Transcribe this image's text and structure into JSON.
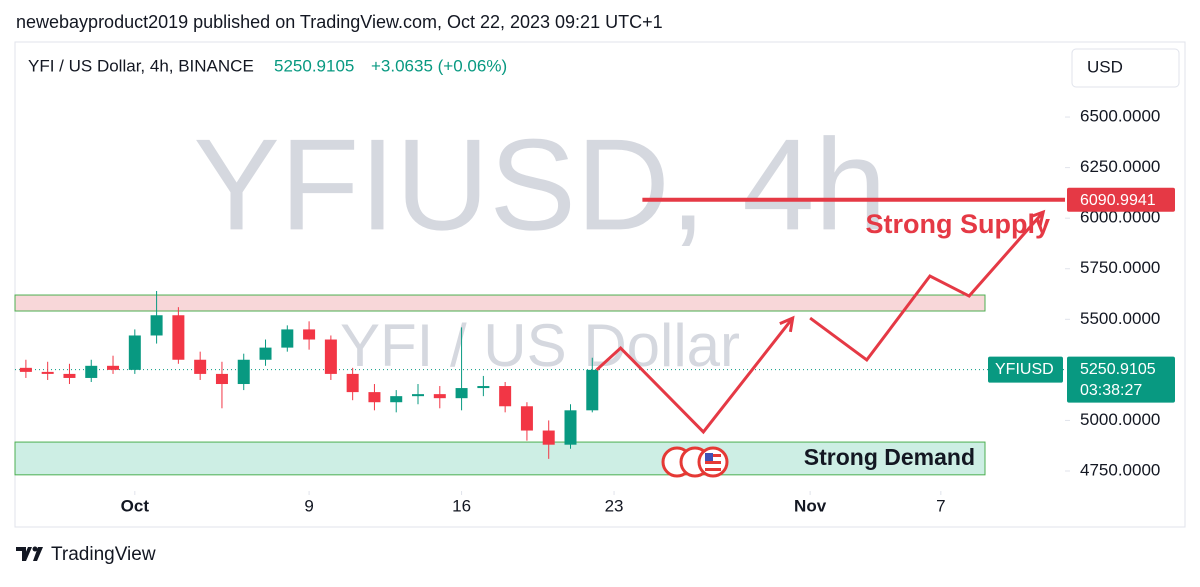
{
  "header": {
    "publisher": "newebayproduct2019 published on TradingView.com, Oct 22, 2023 09:21 UTC+1",
    "brand": "TradingView"
  },
  "chart_data": {
    "type": "candlestick",
    "title": "YFI / US Dollar, 4h, BINANCE",
    "change": "+3.0635 (+0.06%)",
    "currency": "USD",
    "watermark": "YFIUSD, 4h",
    "watermark_sub": "YFI / US Dollar",
    "symbol": "YFIUSD",
    "countdown": "03:38:27",
    "last_price": 5250.9105,
    "up_color": "#089981",
    "down_color": "#f23645",
    "x": [
      -5,
      -4,
      -3,
      -2,
      -1,
      0,
      1,
      2,
      3,
      4,
      5,
      6,
      7,
      8,
      9,
      10,
      11,
      12,
      13,
      14,
      15,
      16,
      17,
      18,
      19,
      20,
      21
    ],
    "open": [
      5260,
      5240,
      5230,
      5210,
      5270,
      5250,
      5420,
      5520,
      5300,
      5230,
      5180,
      5300,
      5360,
      5450,
      5400,
      5230,
      5140,
      5090,
      5120,
      5130,
      5110,
      5160,
      5170,
      5070,
      4950,
      4880,
      5050
    ],
    "high": [
      5300,
      5290,
      5280,
      5300,
      5320,
      5450,
      5640,
      5560,
      5340,
      5290,
      5330,
      5400,
      5470,
      5490,
      5420,
      5260,
      5180,
      5150,
      5180,
      5170,
      5460,
      5220,
      5190,
      5090,
      5000,
      5080,
      5310
    ],
    "low": [
      5210,
      5200,
      5180,
      5190,
      5230,
      5230,
      5380,
      5280,
      5200,
      5060,
      5150,
      5270,
      5340,
      5350,
      5200,
      5100,
      5050,
      5040,
      5080,
      5060,
      5050,
      5120,
      5040,
      4900,
      4810,
      4860,
      5040
    ],
    "close": [
      5240,
      5230,
      5210,
      5270,
      5250,
      5420,
      5520,
      5300,
      5230,
      5180,
      5300,
      5360,
      5450,
      5400,
      5230,
      5140,
      5090,
      5120,
      5130,
      5110,
      5160,
      5170,
      5070,
      4950,
      4880,
      5050,
      5250
    ],
    "xlim": [
      -5.5,
      42.7
    ],
    "ylim": [
      4656,
      6609
    ],
    "xticks": [
      {
        "value": 0,
        "label": "Oct"
      },
      {
        "value": 8,
        "label": "9"
      },
      {
        "value": 15,
        "label": "16"
      },
      {
        "value": 22,
        "label": "23"
      },
      {
        "value": 31,
        "label": "Nov"
      },
      {
        "value": 37,
        "label": "7"
      }
    ],
    "yticks": [
      {
        "value": 4750,
        "label": "4750.0000"
      },
      {
        "value": 5000,
        "label": "5000.0000"
      },
      {
        "value": 5500,
        "label": "5500.0000"
      },
      {
        "value": 5750,
        "label": "5750.0000"
      },
      {
        "value": 6000,
        "label": "6000.0000"
      },
      {
        "value": 6250,
        "label": "6250.0000"
      },
      {
        "value": 6500,
        "label": "6500.0000"
      }
    ],
    "supply": {
      "label": "Strong Supply",
      "range": [
        5541,
        5620
      ]
    },
    "demand": {
      "label": "Strong Demand",
      "range": [
        4731,
        4893
      ]
    },
    "level": {
      "value": 6090.9941,
      "start": 23.3
    },
    "projection": [
      {
        "x": [
          21.2,
          22.3,
          26.1,
          30.2
        ],
        "y": [
          5250,
          5358,
          4943,
          5506
        ]
      },
      {
        "x": [
          31.0,
          33.6,
          36.5,
          38.3,
          41.7
        ],
        "y": [
          5506,
          5299,
          5714,
          5615,
          6030
        ]
      }
    ]
  }
}
